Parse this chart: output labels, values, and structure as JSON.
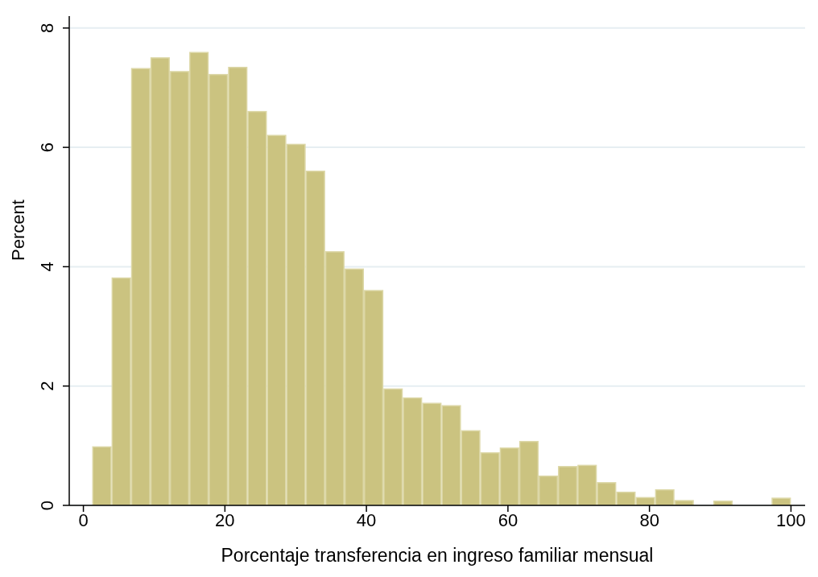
{
  "chart_data": {
    "type": "histogram",
    "xlabel": "Porcentaje transferencia en ingreso familiar mensual",
    "ylabel": "Percent",
    "bins": [
      1.25,
      3.99,
      6.74,
      9.48,
      12.22,
      14.97,
      17.71,
      20.45,
      23.19,
      25.94,
      28.68,
      31.42,
      34.17,
      36.91,
      39.65,
      42.4,
      45.14,
      47.88,
      50.62,
      53.37,
      56.11,
      58.85,
      61.6,
      64.34,
      67.08,
      69.83,
      72.57,
      75.31,
      78.05,
      80.8,
      83.54,
      86.28,
      89.03,
      91.77,
      94.51,
      97.26,
      100
    ],
    "values": [
      0.99,
      3.82,
      7.33,
      7.51,
      7.28,
      7.6,
      7.23,
      7.35,
      6.61,
      6.21,
      6.06,
      5.61,
      4.26,
      3.97,
      3.61,
      1.96,
      1.81,
      1.72,
      1.68,
      1.26,
      0.89,
      0.97,
      1.08,
      0.5,
      0.66,
      0.68,
      0.39,
      0.23,
      0.14,
      0.27,
      0.09,
      0,
      0.08,
      0,
      0,
      0.13
    ],
    "color": "#cbc380",
    "xlim": [
      -2,
      102
    ],
    "xticks": [
      0,
      20,
      40,
      60,
      80,
      100
    ],
    "ylim": [
      0,
      8.2
    ],
    "yticks": [
      0,
      2,
      4,
      6,
      8
    ],
    "grid": "y"
  }
}
